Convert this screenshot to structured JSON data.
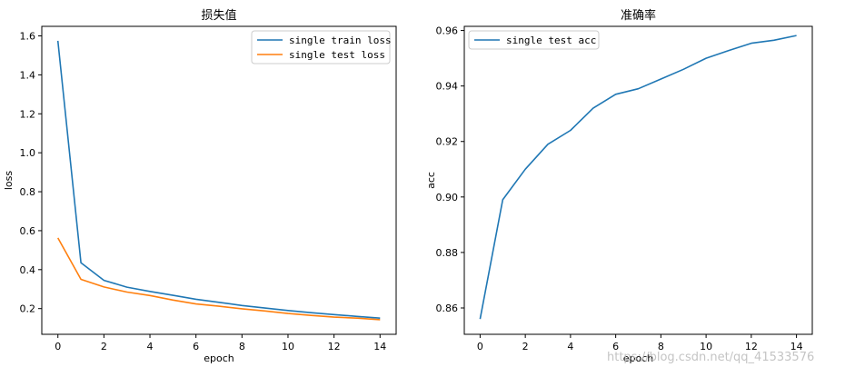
{
  "chart_data": [
    {
      "type": "line",
      "title": "损失值",
      "xlabel": "epoch",
      "ylabel": "loss",
      "x": [
        0,
        1,
        2,
        3,
        4,
        5,
        6,
        7,
        8,
        9,
        10,
        11,
        12,
        13,
        14
      ],
      "xlim": [
        -0.7,
        14.7
      ],
      "ylim": [
        0.068,
        1.649
      ],
      "xticks": [
        0,
        2,
        4,
        6,
        8,
        10,
        12,
        14
      ],
      "yticks": [
        0.2,
        0.4,
        0.6,
        0.8,
        1.0,
        1.2,
        1.4,
        1.6
      ],
      "ytick_labels": [
        "0.2",
        "0.4",
        "0.6",
        "0.8",
        "1.0",
        "1.2",
        "1.4",
        "1.6"
      ],
      "grid": false,
      "legend_position": "top-right",
      "series": [
        {
          "name": "single train loss",
          "color": "#1f77b4",
          "values": [
            1.575,
            0.435,
            0.345,
            0.31,
            0.288,
            0.268,
            0.248,
            0.232,
            0.216,
            0.203,
            0.19,
            0.179,
            0.169,
            0.16,
            0.151
          ]
        },
        {
          "name": "single test loss",
          "color": "#ff7f0e",
          "values": [
            0.563,
            0.35,
            0.311,
            0.285,
            0.267,
            0.244,
            0.224,
            0.212,
            0.199,
            0.188,
            0.175,
            0.165,
            0.156,
            0.151,
            0.143
          ]
        }
      ]
    },
    {
      "type": "line",
      "title": "准确率",
      "xlabel": "epoch",
      "ylabel": "acc",
      "x": [
        0,
        1,
        2,
        3,
        4,
        5,
        6,
        7,
        8,
        9,
        10,
        11,
        12,
        13,
        14
      ],
      "xlim": [
        -0.7,
        14.7
      ],
      "ylim": [
        0.8505,
        0.9615
      ],
      "xticks": [
        0,
        2,
        4,
        6,
        8,
        10,
        12,
        14
      ],
      "yticks": [
        0.86,
        0.88,
        0.9,
        0.92,
        0.94,
        0.96
      ],
      "ytick_labels": [
        "0.86",
        "0.88",
        "0.90",
        "0.92",
        "0.94",
        "0.96"
      ],
      "grid": false,
      "legend_position": "top-left",
      "series": [
        {
          "name": "single test acc",
          "color": "#1f77b4",
          "values": [
            0.856,
            0.899,
            0.91,
            0.919,
            0.924,
            0.932,
            0.937,
            0.939,
            0.9425,
            0.946,
            0.95,
            0.9528,
            0.9554,
            0.9565,
            0.9582
          ]
        }
      ]
    }
  ],
  "watermark": "https://blog.csdn.net/qq_41533576"
}
